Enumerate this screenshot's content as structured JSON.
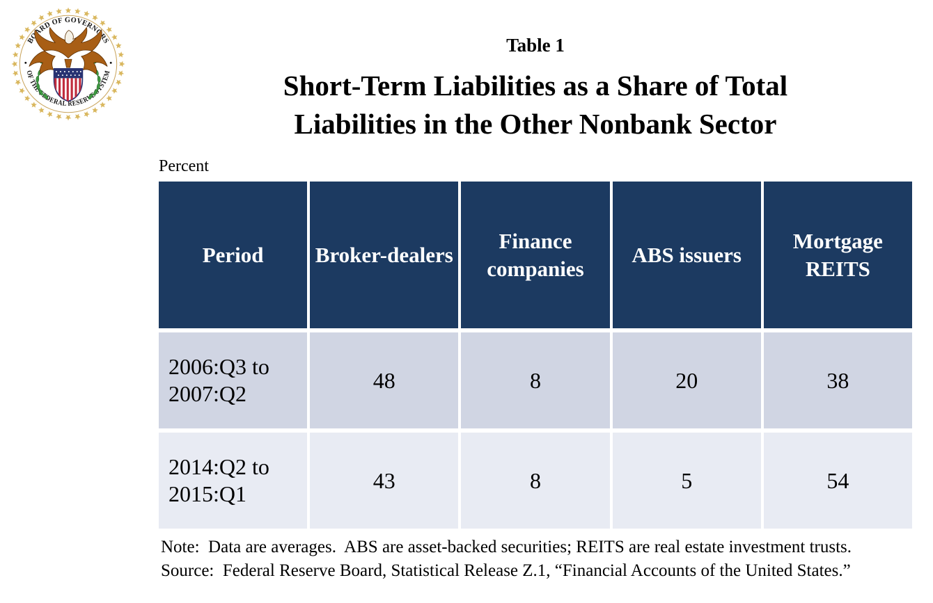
{
  "header": {
    "table_number": "Table 1",
    "title_line1": "Short-Term Liabilities as a Share of Total",
    "title_line2": "Liabilities in the Other Nonbank Sector"
  },
  "seal": {
    "label": "Seal of the Board of Governors of the Federal Reserve System",
    "top_text": "BOARD OF GOVERNORS",
    "bottom_text": "OF THE FEDERAL RESERVE SYSTEM"
  },
  "unit_label": "Percent",
  "chart_data": {
    "type": "table",
    "title": "Short-Term Liabilities as a Share of Total Liabilities in the Other Nonbank Sector",
    "unit": "Percent",
    "columns": [
      "Period",
      "Broker-dealers",
      "Finance companies",
      "ABS issuers",
      "Mortgage REITS"
    ],
    "rows": [
      {
        "period": "2006:Q3 to 2007:Q2",
        "values": [
          48,
          8,
          20,
          38
        ]
      },
      {
        "period": "2014:Q2 to 2015:Q1",
        "values": [
          43,
          8,
          5,
          54
        ]
      }
    ]
  },
  "footnotes": {
    "note": "Note:  Data are averages.  ABS are asset-backed securities; REITS are real estate investment trusts.",
    "source": "Source:  Federal Reserve Board, Statistical Release Z.1, “Financial Accounts of the United States.”"
  },
  "colors": {
    "header_bg": "#1C3A61",
    "header_text": "#FFFFFF",
    "row_band_dark": "#D0D5E3",
    "row_band_light": "#E8EBF3",
    "body_text": "#000000",
    "seal_gold": "#D9B75E",
    "seal_ring": "#C9A45C",
    "seal_eagle": "#A85E15",
    "seal_eagle_outline": "#5A2D00",
    "seal_shield_red": "#C02B3C",
    "seal_shield_blue": "#283272",
    "seal_branch_green": "#3E9842",
    "seal_branch_dark": "#1E6320"
  }
}
